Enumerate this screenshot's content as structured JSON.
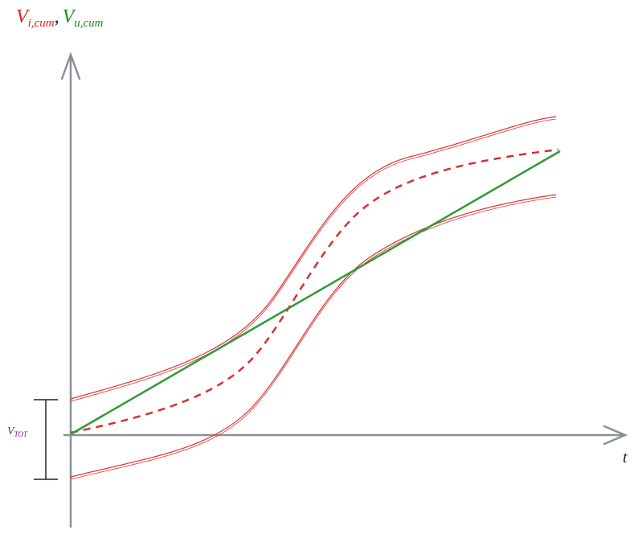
{
  "labels": {
    "vi": {
      "main": "V",
      "sub": "i,cum"
    },
    "sep": ",",
    "vu": {
      "main": "V",
      "sub": "u,cum"
    },
    "t": "t",
    "vtot": {
      "main": "V",
      "sub": "TOT"
    }
  }
}
